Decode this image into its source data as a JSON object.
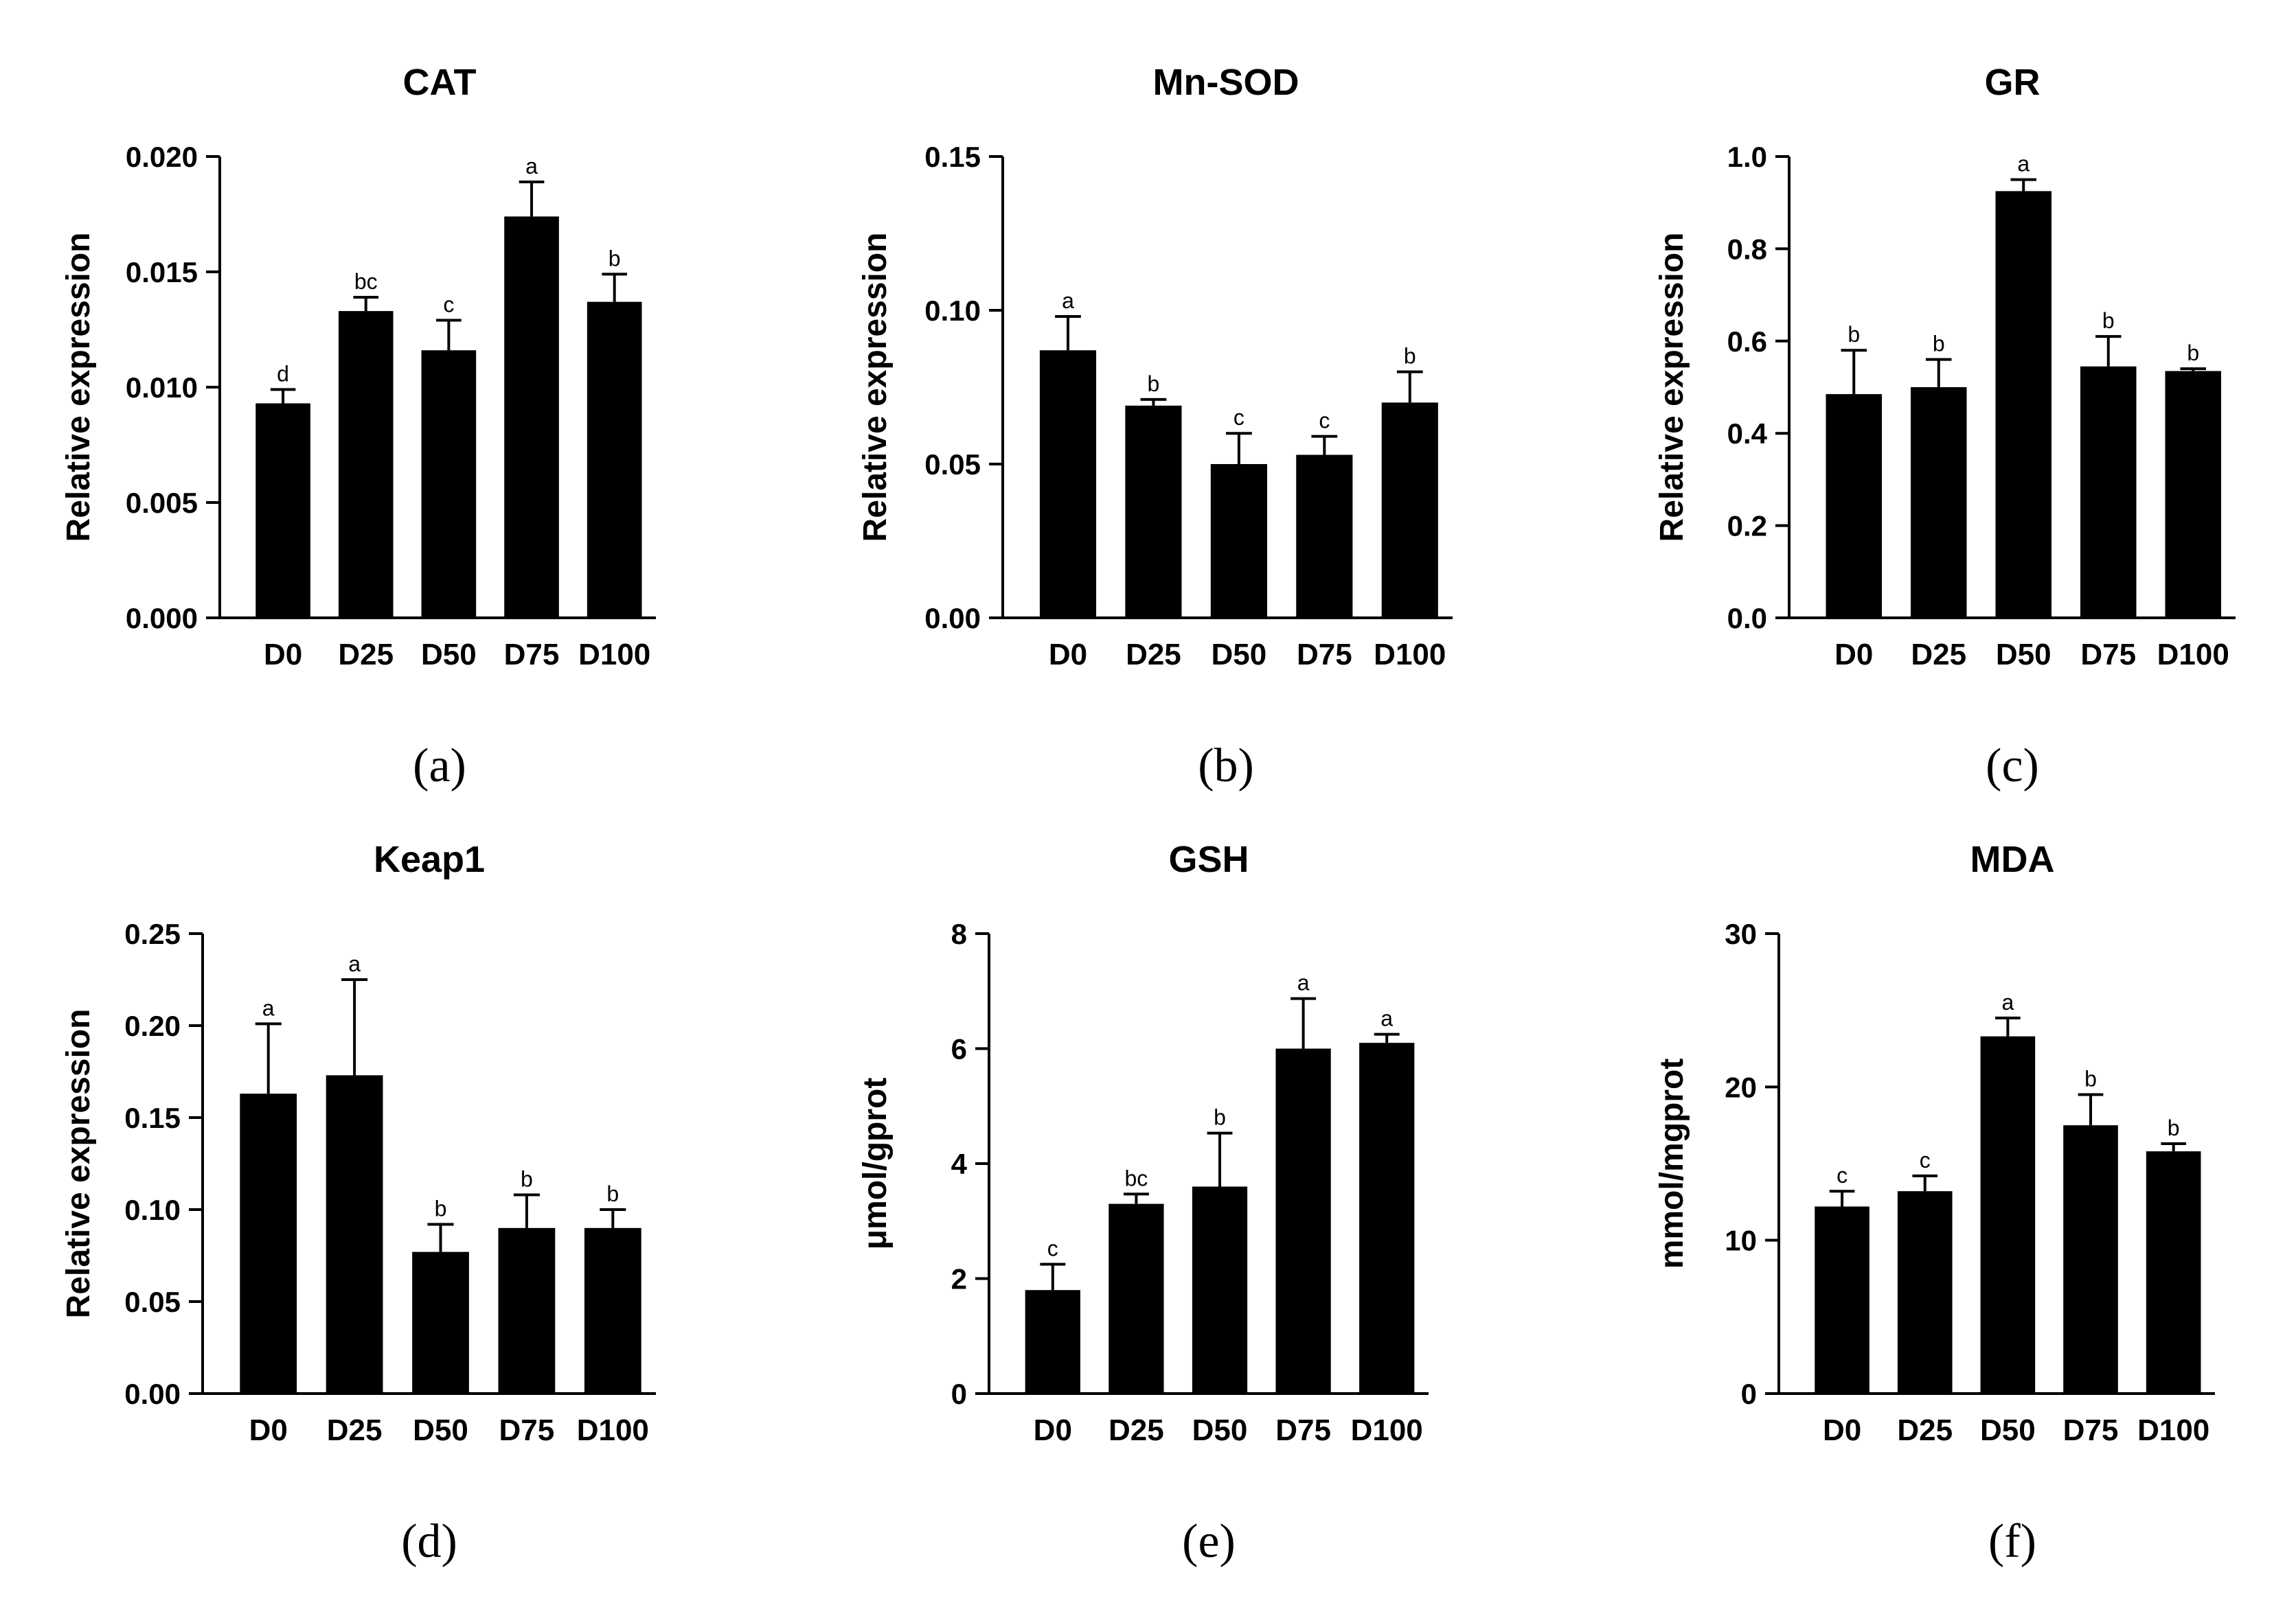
{
  "chart_data": [
    {
      "type": "bar",
      "title": "CAT",
      "panel_label": "(a)",
      "ylabel": "Relative expression",
      "xlabel": "",
      "categories": [
        "D0",
        "D25",
        "D50",
        "D75",
        "D100"
      ],
      "values": [
        0.0093,
        0.0133,
        0.0116,
        0.0174,
        0.0137
      ],
      "errors": [
        0.0006,
        0.0006,
        0.0013,
        0.0015,
        0.0012
      ],
      "significance": [
        "d",
        "bc",
        "c",
        "a",
        "b"
      ],
      "ylim": [
        0,
        0.02
      ],
      "yticks": [
        0,
        0.005,
        0.01,
        0.015,
        0.02
      ],
      "ytick_labels": [
        "0.000",
        "0.005",
        "0.010",
        "0.015",
        "0.020"
      ],
      "grid": false
    },
    {
      "type": "bar",
      "title": "Mn-SOD",
      "panel_label": "(b)",
      "ylabel": "Relative expression",
      "xlabel": "",
      "categories": [
        "D0",
        "D25",
        "D50",
        "D75",
        "D100"
      ],
      "values": [
        0.087,
        0.069,
        0.05,
        0.053,
        0.07
      ],
      "errors": [
        0.011,
        0.002,
        0.01,
        0.006,
        0.01
      ],
      "significance": [
        "a",
        "b",
        "c",
        "c",
        "b"
      ],
      "ylim": [
        0,
        0.15
      ],
      "yticks": [
        0,
        0.05,
        0.1,
        0.15
      ],
      "ytick_labels": [
        "0.00",
        "0.05",
        "0.10",
        "0.15"
      ],
      "grid": false
    },
    {
      "type": "bar",
      "title": "GR",
      "panel_label": "(c)",
      "ylabel": "Relative expression",
      "xlabel": "",
      "categories": [
        "D0",
        "D25",
        "D50",
        "D75",
        "D100"
      ],
      "values": [
        0.485,
        0.5,
        0.925,
        0.545,
        0.535
      ],
      "errors": [
        0.095,
        0.06,
        0.025,
        0.065,
        0.005
      ],
      "significance": [
        "b",
        "b",
        "a",
        "b",
        "b"
      ],
      "ylim": [
        0,
        1.0
      ],
      "yticks": [
        0,
        0.2,
        0.4,
        0.6,
        0.8,
        1.0
      ],
      "ytick_labels": [
        "0.0",
        "0.2",
        "0.4",
        "0.6",
        "0.8",
        "1.0"
      ],
      "grid": false
    },
    {
      "type": "bar",
      "title": "Keap1",
      "panel_label": "(d)",
      "ylabel": "Relative expression",
      "xlabel": "",
      "categories": [
        "D0",
        "D25",
        "D50",
        "D75",
        "D100"
      ],
      "values": [
        0.163,
        0.173,
        0.077,
        0.09,
        0.09
      ],
      "errors": [
        0.038,
        0.052,
        0.015,
        0.018,
        0.01
      ],
      "significance": [
        "a",
        "a",
        "b",
        "b",
        "b"
      ],
      "ylim": [
        0,
        0.25
      ],
      "yticks": [
        0,
        0.05,
        0.1,
        0.15,
        0.2,
        0.25
      ],
      "ytick_labels": [
        "0.00",
        "0.05",
        "0.10",
        "0.15",
        "0.20",
        "0.25"
      ],
      "grid": false
    },
    {
      "type": "bar",
      "title": "GSH",
      "panel_label": "(e)",
      "ylabel": "μmol/gprot",
      "xlabel": "",
      "categories": [
        "D0",
        "D25",
        "D50",
        "D75",
        "D100"
      ],
      "values": [
        1.8,
        3.3,
        3.6,
        6.0,
        6.1
      ],
      "errors": [
        0.45,
        0.17,
        0.93,
        0.87,
        0.15
      ],
      "significance": [
        "c",
        "bc",
        "b",
        "a",
        "a"
      ],
      "ylim": [
        0,
        8
      ],
      "yticks": [
        0,
        2,
        4,
        6,
        8
      ],
      "ytick_labels": [
        "0",
        "2",
        "4",
        "6",
        "8"
      ],
      "grid": false
    },
    {
      "type": "bar",
      "title": "MDA",
      "panel_label": "(f)",
      "ylabel": "mmol/mgprot",
      "xlabel": "",
      "categories": [
        "D0",
        "D25",
        "D50",
        "D75",
        "D100"
      ],
      "values": [
        12.2,
        13.2,
        23.3,
        17.5,
        15.8
      ],
      "errors": [
        1.0,
        1.0,
        1.2,
        2.0,
        0.5
      ],
      "significance": [
        "c",
        "c",
        "a",
        "b",
        "b"
      ],
      "ylim": [
        0,
        30
      ],
      "yticks": [
        0,
        10,
        20,
        30
      ],
      "ytick_labels": [
        "0",
        "10",
        "20",
        "30"
      ],
      "grid": false
    }
  ]
}
